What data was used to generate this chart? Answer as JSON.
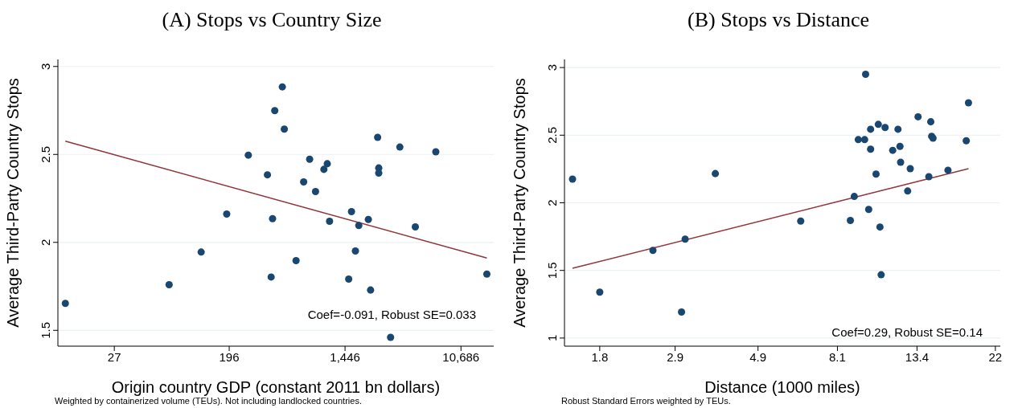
{
  "chart_data": [
    {
      "type": "scatter",
      "title": "(A) Stops vs Country Size",
      "xlabel": "Origin country GDP (constant 2011 bn dollars)",
      "ylabel": "Average Third-Party Country Stops",
      "annotations": [
        "Coef=-0.091, Robust SE=0.033",
        "Weighted by containerized volume (TEUs). Not including landlocked countries."
      ],
      "log": "x",
      "xlim": [
        10.2,
        18800
      ],
      "xticks": [
        27,
        196,
        {
          "value": 1446,
          "label": "1,446"
        },
        {
          "value": 10686,
          "label": "10,686"
        }
      ],
      "ylim": [
        1.41,
        3.04
      ],
      "yticks": [
        1.5,
        2,
        2.5,
        3
      ],
      "grid": "y",
      "series": [
        {
          "marker": "circle",
          "color": "#1a476f",
          "x": [
            11.6,
            69.5,
            120.8,
            187.7,
            272.5,
            379,
            404,
            414,
            430,
            490,
            507,
            621,
            708,
            785,
            869,
            1004,
            1064,
            1107,
            1540,
            1616,
            1729,
            1833,
            2161,
            2246,
            2537,
            2586,
            2586,
            3172,
            3722,
            4861,
            6921,
            16700
          ],
          "values": [
            1.653,
            1.759,
            1.945,
            2.161,
            2.496,
            2.384,
            1.803,
            2.135,
            2.749,
            2.884,
            2.644,
            1.896,
            2.344,
            2.473,
            2.289,
            2.415,
            2.447,
            2.12,
            1.791,
            2.175,
            1.951,
            2.096,
            2.13,
            1.729,
            2.597,
            2.423,
            2.394,
            1.46,
            2.542,
            2.088,
            2.515,
            1.82
          ]
        },
        {
          "type": "line",
          "marker": "none",
          "color": "#90353b",
          "x": [
            11.6,
            16700
          ],
          "values": [
            2.575,
            1.911
          ]
        }
      ]
    },
    {
      "type": "scatter",
      "title": "(B) Stops vs Distance",
      "xlabel": "Distance (1000 miles)",
      "ylabel": "Average Third-Party Country Stops",
      "annotations": [
        "Coef=0.29, Robust SE=0.14",
        "Robust Standard Errors weighted by TEUs."
      ],
      "log": "x",
      "xlim": [
        1.44,
        22.7
      ],
      "xticks": [
        1.8,
        2.9,
        4.9,
        8.1,
        13.4,
        22
      ],
      "ylim": [
        0.94,
        3.06
      ],
      "yticks": [
        1,
        1.5,
        2,
        2.5,
        3
      ],
      "grid": "y",
      "series": [
        {
          "marker": "circle",
          "color": "#1a476f",
          "x": [
            1.515,
            1.8,
            2.52,
            3.02,
            3.09,
            3.74,
            6.42,
            8.79,
            9.01,
            9.24,
            9.62,
            9.68,
            9.87,
            9.99,
            9.99,
            10.34,
            10.49,
            10.6,
            10.68,
            10.95,
            11.49,
            11.88,
            12.03,
            12.08,
            12.63,
            12.84,
            13.49,
            14.44,
            14.62,
            14.7,
            14.83,
            16.3,
            18.3,
            18.56
          ],
          "values": [
            2.175,
            1.339,
            1.648,
            1.192,
            1.731,
            2.216,
            1.865,
            1.869,
            2.047,
            2.467,
            2.467,
            2.95,
            1.951,
            2.544,
            2.396,
            2.212,
            2.58,
            1.821,
            1.468,
            2.557,
            2.388,
            2.544,
            2.417,
            2.3,
            2.087,
            2.252,
            2.636,
            2.193,
            2.599,
            2.492,
            2.478,
            2.241,
            2.459,
            2.739
          ]
        },
        {
          "type": "line",
          "marker": "none",
          "color": "#90353b",
          "x": [
            1.515,
            18.56
          ],
          "values": [
            1.516,
            2.252
          ]
        }
      ]
    }
  ]
}
